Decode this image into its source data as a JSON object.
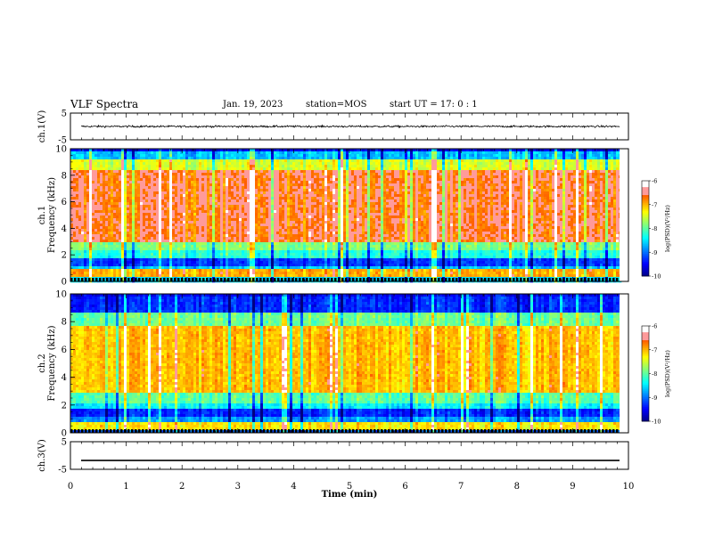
{
  "header": {
    "title": "VLF Spectra",
    "date": "Jan. 19, 2023",
    "station": "station=MOS",
    "start": "start  UT =   17: 0  : 1"
  },
  "chart_data": [
    {
      "type": "line",
      "panel": "ch1-waveform",
      "ylabel": "ch.1(V)",
      "ylim": [
        -5,
        5
      ],
      "yticks": [
        "5",
        "-5"
      ],
      "xlim": [
        0,
        10
      ],
      "series": [
        {
          "values_note": "noisy waveform near 0 V",
          "baseline": 0.0
        }
      ]
    },
    {
      "type": "heatmap",
      "panel": "ch1-spectrogram",
      "ylabel": "ch.1\nFrequency (kHz)",
      "ylim": [
        0,
        10
      ],
      "yticks": [
        "0",
        "2",
        "4",
        "6",
        "8",
        "10"
      ],
      "xlim": [
        0,
        10
      ],
      "band_levels": [
        {
          "f": [
            0,
            0.4
          ],
          "level": -8.5
        },
        {
          "f": [
            0.4,
            1.0
          ],
          "level": -6.9
        },
        {
          "f": [
            1.0,
            1.3
          ],
          "level": -8.6
        },
        {
          "f": [
            1.3,
            1.8
          ],
          "level": -9.2
        },
        {
          "f": [
            1.8,
            2.4
          ],
          "level": -8.2
        },
        {
          "f": [
            2.4,
            3.0
          ],
          "level": -7.8
        },
        {
          "f": [
            3.0,
            8.5
          ],
          "level": -6.6
        },
        {
          "f": [
            8.5,
            9.3
          ],
          "level": -7.4
        },
        {
          "f": [
            9.3,
            10.0
          ],
          "level": -8.6
        }
      ],
      "colorbar": {
        "label": "log(PSD)(V²/Hz)",
        "min": -10,
        "max": -6,
        "ticks": [
          "-6",
          "-7",
          "-8",
          "-9",
          "-10"
        ]
      }
    },
    {
      "type": "heatmap",
      "panel": "ch2-spectrogram",
      "ylabel": "ch.2\nFrequency (kHz)",
      "ylim": [
        0,
        10
      ],
      "yticks": [
        "0",
        "2",
        "4",
        "6",
        "8",
        "10"
      ],
      "xlim": [
        0,
        10
      ],
      "band_levels": [
        {
          "f": [
            0,
            0.3
          ],
          "level": -9.0
        },
        {
          "f": [
            0.3,
            0.9
          ],
          "level": -7.2
        },
        {
          "f": [
            0.9,
            1.3
          ],
          "level": -8.8
        },
        {
          "f": [
            1.3,
            1.8
          ],
          "level": -9.3
        },
        {
          "f": [
            1.8,
            2.3
          ],
          "level": -8.4
        },
        {
          "f": [
            2.3,
            3.0
          ],
          "level": -8.0
        },
        {
          "f": [
            3.0,
            7.8
          ],
          "level": -7.0
        },
        {
          "f": [
            7.8,
            8.8
          ],
          "level": -7.9
        },
        {
          "f": [
            8.8,
            10.0
          ],
          "level": -9.3
        }
      ],
      "colorbar": {
        "label": "log(PSD)(V²/Hz)",
        "min": -10,
        "max": -6,
        "ticks": [
          "-6",
          "-7",
          "-8",
          "-9",
          "-10"
        ]
      }
    },
    {
      "type": "line",
      "panel": "ch3-waveform",
      "ylabel": "ch.3(V)",
      "ylim": [
        -5,
        5
      ],
      "yticks": [
        "5",
        "-5"
      ],
      "xlim": [
        0,
        10
      ],
      "series": [
        {
          "values_note": "flat line",
          "baseline": -1.8
        }
      ]
    }
  ],
  "xaxis": {
    "label": "Time  (min)",
    "ticks": [
      "0",
      "1",
      "2",
      "3",
      "4",
      "5",
      "6",
      "7",
      "8",
      "9",
      "10"
    ],
    "data_end": 9.84
  }
}
